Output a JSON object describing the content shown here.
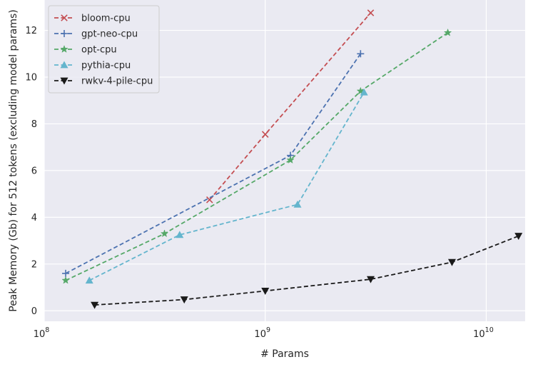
{
  "chart_data": {
    "type": "line",
    "xlabel": "# Params",
    "ylabel": "Peak Memory (Gb) for 512 tokens (excluding model params)",
    "x_scale": "log",
    "xlim": [
      100000000,
      15000000000
    ],
    "ylim": [
      -0.45,
      13.3
    ],
    "x_ticks": [
      {
        "value": 100000000,
        "base": "10",
        "exp": "8"
      },
      {
        "value": 1000000000,
        "base": "10",
        "exp": "9"
      },
      {
        "value": 10000000000,
        "base": "10",
        "exp": "10"
      }
    ],
    "y_ticks": [
      0,
      2,
      4,
      6,
      8,
      10,
      12
    ],
    "grid": true,
    "legend_position": "top-left",
    "series": [
      {
        "name": "bloom-cpu",
        "color": "#c44e52",
        "marker": "x",
        "x": [
          560000000,
          1000000000,
          3000000000
        ],
        "y": [
          4.75,
          7.55,
          12.75
        ]
      },
      {
        "name": "gpt-neo-cpu",
        "color": "#4c72b0",
        "marker": "plus",
        "x": [
          125000000,
          1300000000,
          2700000000
        ],
        "y": [
          1.6,
          6.65,
          11.0
        ]
      },
      {
        "name": "opt-cpu",
        "color": "#55a868",
        "marker": "star",
        "x": [
          125000000,
          350000000,
          1300000000,
          2700000000,
          6700000000
        ],
        "y": [
          1.3,
          3.3,
          6.45,
          9.4,
          11.9
        ]
      },
      {
        "name": "pythia-cpu",
        "color": "#64b5cd",
        "marker": "triangle-up",
        "x": [
          160000000,
          410000000,
          1400000000,
          2800000000
        ],
        "y": [
          1.3,
          3.25,
          4.55,
          9.35
        ]
      },
      {
        "name": "rwkv-4-pile-cpu",
        "color": "#1a1a1a",
        "marker": "triangle-down",
        "x": [
          169000000,
          430000000,
          1000000000,
          3000000000,
          7000000000,
          14000000000
        ],
        "y": [
          0.25,
          0.48,
          0.85,
          1.35,
          2.08,
          3.2
        ]
      }
    ]
  }
}
